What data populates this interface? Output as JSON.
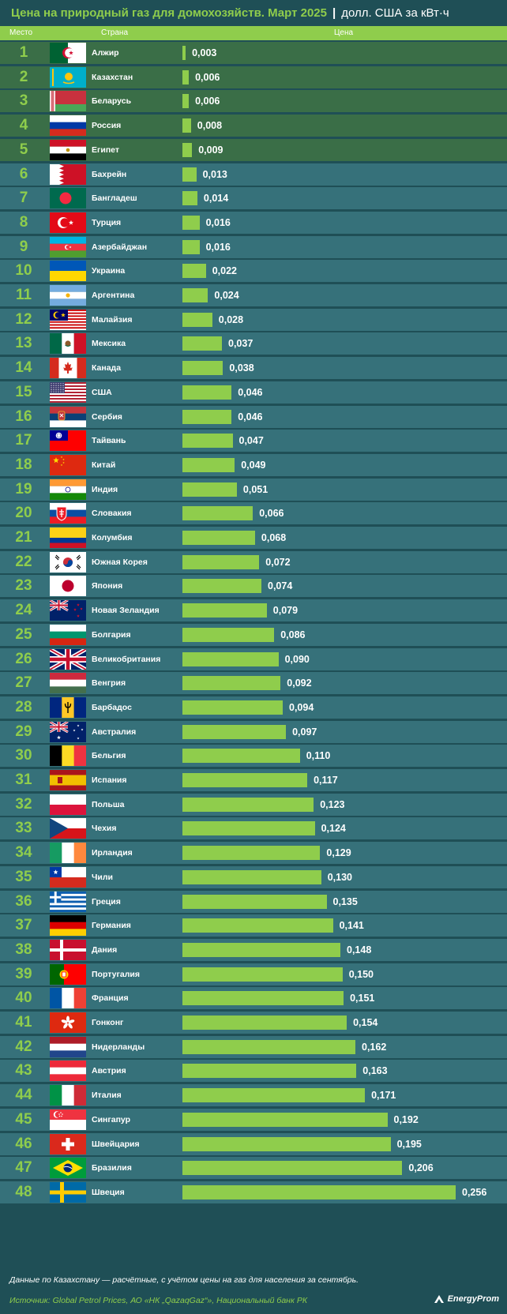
{
  "title": {
    "main": "Цена на природный газ для домохозяйств. Март 2025",
    "separator": "|",
    "unit": "долл. США за кВт·ч"
  },
  "headers": {
    "rank": "Место",
    "country": "Страна",
    "price": "Цена"
  },
  "colors": {
    "background": "#1f4f56",
    "accent": "#8fcd4c",
    "row_top": "#3a6e47",
    "row_rest": "#36717a"
  },
  "chart_data": {
    "type": "bar",
    "orientation": "horizontal",
    "title": "Цена на природный газ для домохозяйств. Март 2025",
    "xlabel": "Цена",
    "unit": "долл. США за кВт·ч",
    "xlim": [
      0,
      0.256
    ],
    "rows": [
      {
        "rank": "1",
        "country": "Алжир",
        "value": 0.003,
        "label": "0,003",
        "flag": "algeria-flag"
      },
      {
        "rank": "2",
        "country": "Казахстан",
        "value": 0.006,
        "label": "0,006",
        "flag": "kazakhstan-flag"
      },
      {
        "rank": "3",
        "country": "Беларусь",
        "value": 0.006,
        "label": "0,006",
        "flag": "belarus-flag"
      },
      {
        "rank": "4",
        "country": "Россия",
        "value": 0.008,
        "label": "0,008",
        "flag": "russia-flag"
      },
      {
        "rank": "5",
        "country": "Египет",
        "value": 0.009,
        "label": "0,009",
        "flag": "egypt-flag"
      },
      {
        "rank": "6",
        "country": "Бахрейн",
        "value": 0.013,
        "label": "0,013",
        "flag": "bahrain-flag"
      },
      {
        "rank": "7",
        "country": "Бангладеш",
        "value": 0.014,
        "label": "0,014",
        "flag": "bangladesh-flag"
      },
      {
        "rank": "8",
        "country": "Турция",
        "value": 0.016,
        "label": "0,016",
        "flag": "turkey-flag"
      },
      {
        "rank": "9",
        "country": "Азербайджан",
        "value": 0.016,
        "label": "0,016",
        "flag": "azerbaijan-flag"
      },
      {
        "rank": "10",
        "country": "Украина",
        "value": 0.022,
        "label": "0,022",
        "flag": "ukraine-flag"
      },
      {
        "rank": "11",
        "country": "Аргентина",
        "value": 0.024,
        "label": "0,024",
        "flag": "argentina-flag"
      },
      {
        "rank": "12",
        "country": "Малайзия",
        "value": 0.028,
        "label": "0,028",
        "flag": "malaysia-flag"
      },
      {
        "rank": "13",
        "country": "Мексика",
        "value": 0.037,
        "label": "0,037",
        "flag": "mexico-flag"
      },
      {
        "rank": "14",
        "country": "Канада",
        "value": 0.038,
        "label": "0,038",
        "flag": "canada-flag"
      },
      {
        "rank": "15",
        "country": "США",
        "value": 0.046,
        "label": "0,046",
        "flag": "usa-flag"
      },
      {
        "rank": "16",
        "country": "Сербия",
        "value": 0.046,
        "label": "0,046",
        "flag": "serbia-flag"
      },
      {
        "rank": "17",
        "country": "Тайвань",
        "value": 0.047,
        "label": "0,047",
        "flag": "taiwan-flag"
      },
      {
        "rank": "18",
        "country": "Китай",
        "value": 0.049,
        "label": "0,049",
        "flag": "china-flag"
      },
      {
        "rank": "19",
        "country": "Индия",
        "value": 0.051,
        "label": "0,051",
        "flag": "india-flag"
      },
      {
        "rank": "20",
        "country": "Словакия",
        "value": 0.066,
        "label": "0,066",
        "flag": "slovakia-flag"
      },
      {
        "rank": "21",
        "country": "Колумбия",
        "value": 0.068,
        "label": "0,068",
        "flag": "colombia-flag"
      },
      {
        "rank": "22",
        "country": "Южная Корея",
        "value": 0.072,
        "label": "0,072",
        "flag": "south-korea-flag"
      },
      {
        "rank": "23",
        "country": "Япония",
        "value": 0.074,
        "label": "0,074",
        "flag": "japan-flag"
      },
      {
        "rank": "24",
        "country": "Новая Зеландия",
        "value": 0.079,
        "label": "0,079",
        "flag": "new-zealand-flag"
      },
      {
        "rank": "25",
        "country": "Болгария",
        "value": 0.086,
        "label": "0,086",
        "flag": "bulgaria-flag"
      },
      {
        "rank": "26",
        "country": "Великобритания",
        "value": 0.09,
        "label": "0,090",
        "flag": "uk-flag"
      },
      {
        "rank": "27",
        "country": "Венгрия",
        "value": 0.092,
        "label": "0,092",
        "flag": "hungary-flag"
      },
      {
        "rank": "28",
        "country": "Барбадос",
        "value": 0.094,
        "label": "0,094",
        "flag": "barbados-flag"
      },
      {
        "rank": "29",
        "country": "Австралия",
        "value": 0.097,
        "label": "0,097",
        "flag": "australia-flag"
      },
      {
        "rank": "30",
        "country": "Бельгия",
        "value": 0.11,
        "label": "0,110",
        "flag": "belgium-flag"
      },
      {
        "rank": "31",
        "country": "Испания",
        "value": 0.117,
        "label": "0,117",
        "flag": "spain-flag"
      },
      {
        "rank": "32",
        "country": "Польша",
        "value": 0.123,
        "label": "0,123",
        "flag": "poland-flag"
      },
      {
        "rank": "33",
        "country": "Чехия",
        "value": 0.124,
        "label": "0,124",
        "flag": "czechia-flag"
      },
      {
        "rank": "34",
        "country": "Ирландия",
        "value": 0.129,
        "label": "0,129",
        "flag": "ireland-flag"
      },
      {
        "rank": "35",
        "country": "Чили",
        "value": 0.13,
        "label": "0,130",
        "flag": "chile-flag"
      },
      {
        "rank": "36",
        "country": "Греция",
        "value": 0.135,
        "label": "0,135",
        "flag": "greece-flag"
      },
      {
        "rank": "37",
        "country": "Германия",
        "value": 0.141,
        "label": "0,141",
        "flag": "germany-flag"
      },
      {
        "rank": "38",
        "country": "Дания",
        "value": 0.148,
        "label": "0,148",
        "flag": "denmark-flag"
      },
      {
        "rank": "39",
        "country": "Португалия",
        "value": 0.15,
        "label": "0,150",
        "flag": "portugal-flag"
      },
      {
        "rank": "40",
        "country": "Франция",
        "value": 0.151,
        "label": "0,151",
        "flag": "france-flag"
      },
      {
        "rank": "41",
        "country": "Гонконг",
        "value": 0.154,
        "label": "0,154",
        "flag": "hong-kong-flag"
      },
      {
        "rank": "42",
        "country": "Нидерланды",
        "value": 0.162,
        "label": "0,162",
        "flag": "netherlands-flag"
      },
      {
        "rank": "43",
        "country": "Австрия",
        "value": 0.163,
        "label": "0,163",
        "flag": "austria-flag"
      },
      {
        "rank": "44",
        "country": "Италия",
        "value": 0.171,
        "label": "0,171",
        "flag": "italy-flag"
      },
      {
        "rank": "45",
        "country": "Сингапур",
        "value": 0.192,
        "label": "0,192",
        "flag": "singapore-flag"
      },
      {
        "rank": "46",
        "country": "Швейцария",
        "value": 0.195,
        "label": "0,195",
        "flag": "switzerland-flag"
      },
      {
        "rank": "47",
        "country": "Бразилия",
        "value": 0.206,
        "label": "0,206",
        "flag": "brazil-flag"
      },
      {
        "rank": "48",
        "country": "Швеция",
        "value": 0.256,
        "label": "0,256",
        "flag": "sweden-flag"
      }
    ]
  },
  "footer": {
    "note": "Данные по Казахстану — расчётные, с учётом цены на газ для населения за сентябрь.",
    "source": "Источник: Global Petrol Prices, АО «НК „QazaqGaz“», Национальный банк РК",
    "logo": "EnergyProm"
  }
}
